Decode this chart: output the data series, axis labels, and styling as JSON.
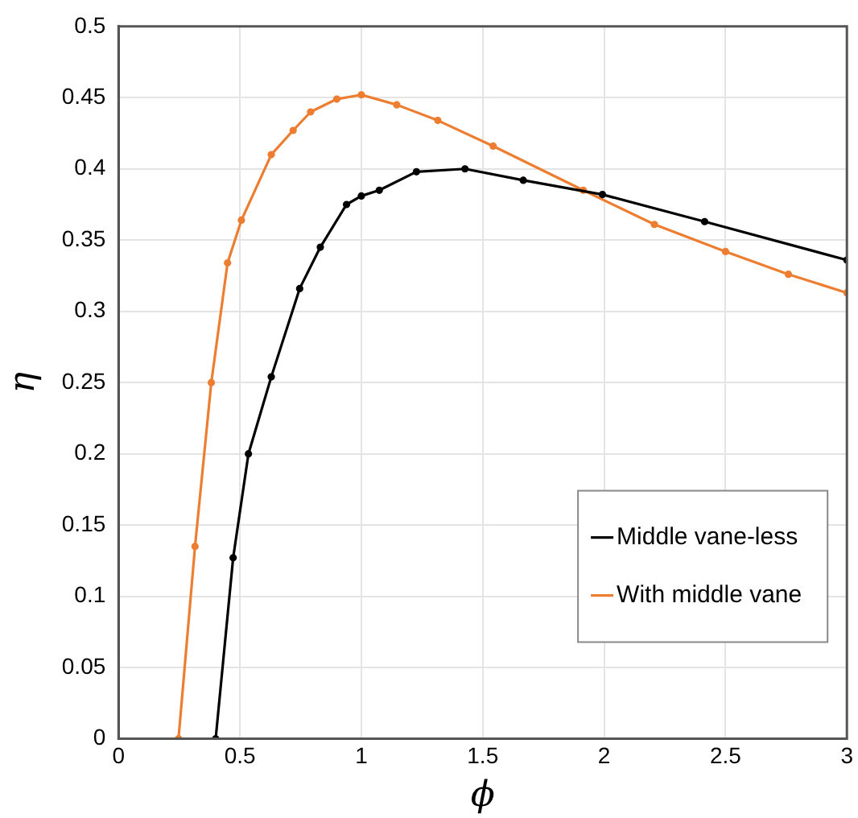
{
  "chart_data": {
    "type": "line",
    "xlabel": "ϕ",
    "ylabel": "η",
    "xlim": [
      0,
      3
    ],
    "ylim": [
      0,
      0.5
    ],
    "xticks": [
      0,
      0.5,
      1,
      1.5,
      2,
      2.5,
      3
    ],
    "yticks": [
      0,
      0.05,
      0.1,
      0.15,
      0.2,
      0.25,
      0.3,
      0.35,
      0.4,
      0.45,
      0.5
    ],
    "grid": true,
    "legend": "bottom right",
    "marker": "circle",
    "line_style": "solid",
    "series": [
      {
        "name": "Middle vane-less",
        "color": "#000000",
        "x": [
          0.4,
          0.472,
          0.535,
          0.629,
          0.746,
          0.831,
          0.939,
          1.0,
          1.074,
          1.227,
          1.427,
          1.667,
          1.993,
          2.414,
          3.0
        ],
        "values": [
          0,
          0.127,
          0.2,
          0.254,
          0.316,
          0.345,
          0.375,
          0.381,
          0.385,
          0.398,
          0.4,
          0.392,
          0.382,
          0.363,
          0.336
        ]
      },
      {
        "name": "With middle vane",
        "color": "#ed7d31",
        "x": [
          0.247,
          0.315,
          0.382,
          0.449,
          0.506,
          0.629,
          0.719,
          0.791,
          0.899,
          1.0,
          1.146,
          1.315,
          1.543,
          1.914,
          2.207,
          2.5,
          2.759,
          3.0
        ],
        "values": [
          0,
          0.135,
          0.25,
          0.334,
          0.364,
          0.41,
          0.427,
          0.44,
          0.449,
          0.452,
          0.445,
          0.434,
          0.416,
          0.385,
          0.361,
          0.342,
          0.326,
          0.313
        ]
      }
    ]
  }
}
